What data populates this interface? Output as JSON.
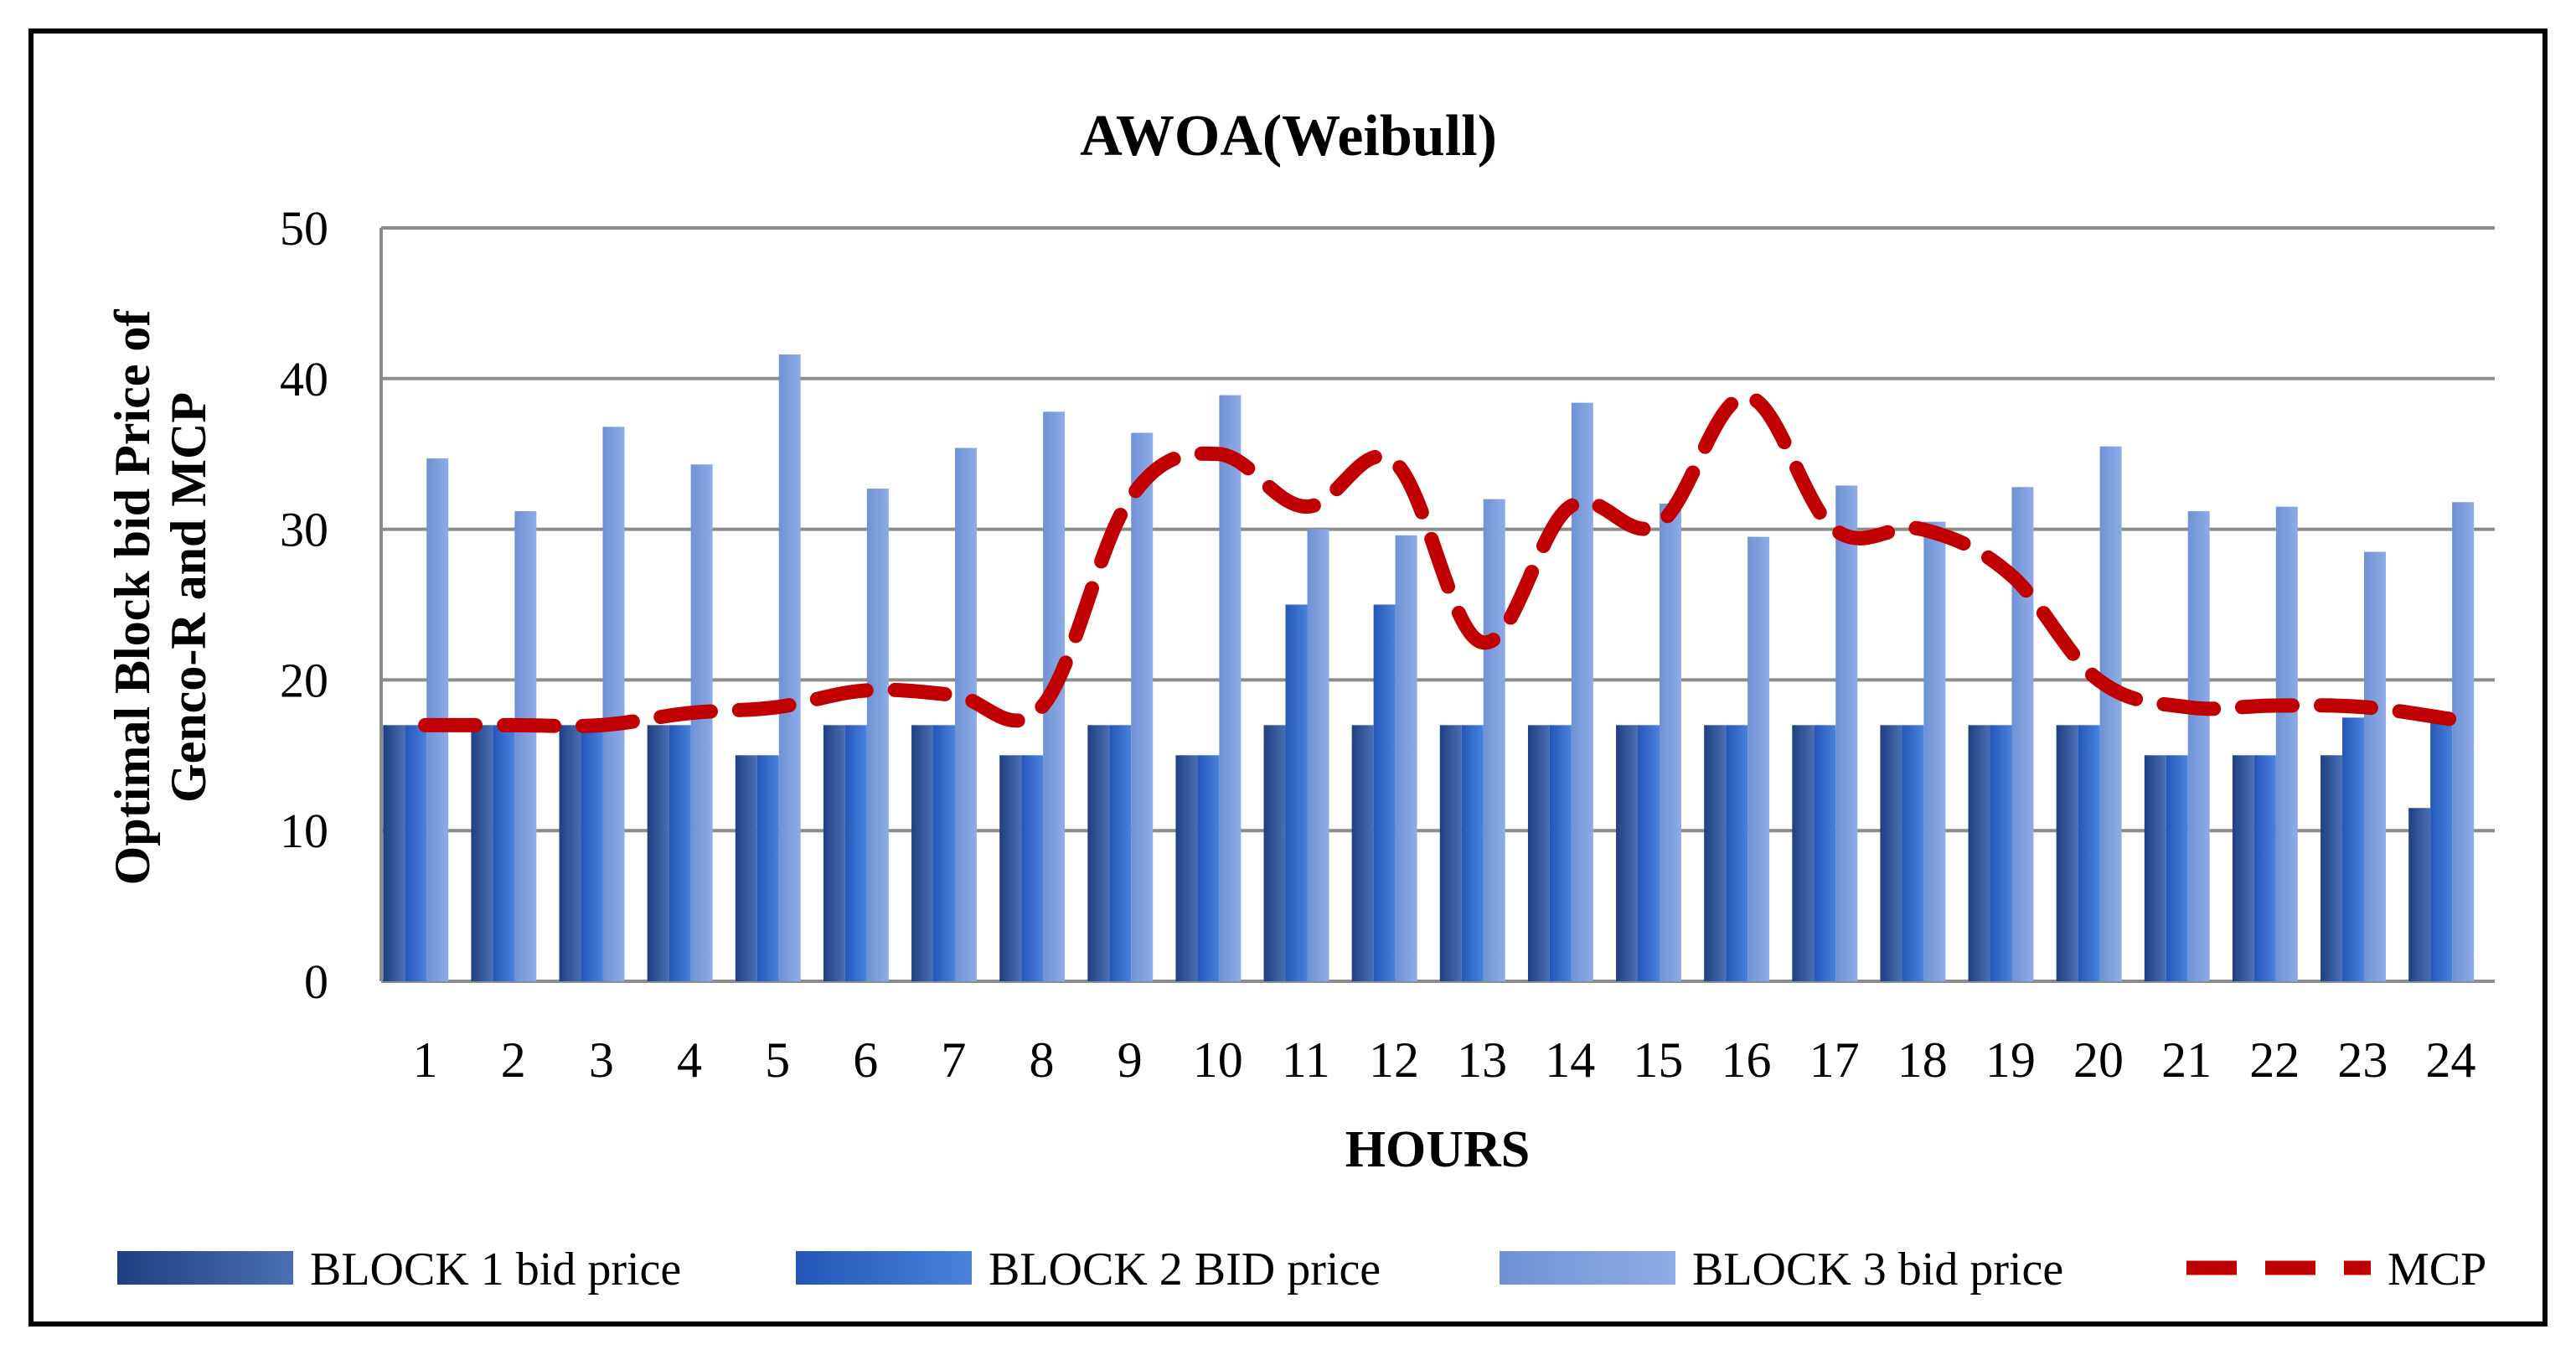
{
  "chart_data": {
    "type": "bar",
    "title": "AWOA(Weibull)",
    "xlabel": "HOURS",
    "ylabel_lines": [
      "Optimal Block bid Price of",
      "Genco-R and MCP"
    ],
    "ylim": [
      0,
      50
    ],
    "yticks": [
      "0",
      "10",
      "20",
      "30",
      "40",
      "50"
    ],
    "grid": true,
    "legend_position": "bottom",
    "categories": [
      "1",
      "2",
      "3",
      "4",
      "5",
      "6",
      "7",
      "8",
      "9",
      "10",
      "11",
      "12",
      "13",
      "14",
      "15",
      "16",
      "17",
      "18",
      "19",
      "20",
      "21",
      "22",
      "23",
      "24"
    ],
    "series": [
      {
        "name": "BLOCK 1 bid price",
        "kind": "bar",
        "color": "#2a4f9a",
        "values": [
          17,
          17,
          17,
          17,
          15,
          17,
          17,
          15,
          17,
          15,
          17,
          17,
          17,
          17,
          17,
          17,
          17,
          17,
          17,
          17,
          15,
          15,
          15,
          11.5
        ]
      },
      {
        "name": "BLOCK 2 BID price",
        "kind": "bar",
        "color": "#3468c8",
        "values": [
          17,
          17,
          17,
          17,
          15,
          17,
          17,
          15,
          17,
          15,
          25,
          25,
          17,
          17,
          17,
          17,
          17,
          17,
          17,
          17,
          15,
          15,
          17.5,
          17.2
        ]
      },
      {
        "name": "BLOCK 3 bid price",
        "kind": "bar",
        "color": "#7b9ddd",
        "values": [
          34.7,
          31.2,
          36.8,
          34.3,
          41.6,
          32.7,
          35.4,
          37.8,
          36.4,
          38.9,
          30.0,
          29.6,
          32.0,
          38.4,
          31.7,
          29.5,
          32.9,
          30.5,
          32.8,
          35.5,
          31.2,
          31.5,
          28.5,
          31.8
        ]
      },
      {
        "name": "MCP",
        "kind": "line",
        "color": "#c00000",
        "values": [
          17,
          17,
          17,
          17.8,
          18.2,
          19.3,
          19,
          18.2,
          32,
          35,
          31.5,
          34.5,
          22.5,
          31.5,
          30.3,
          38.8,
          30,
          30,
          27,
          20,
          18.2,
          18.3,
          18.2,
          17.4
        ]
      }
    ]
  }
}
